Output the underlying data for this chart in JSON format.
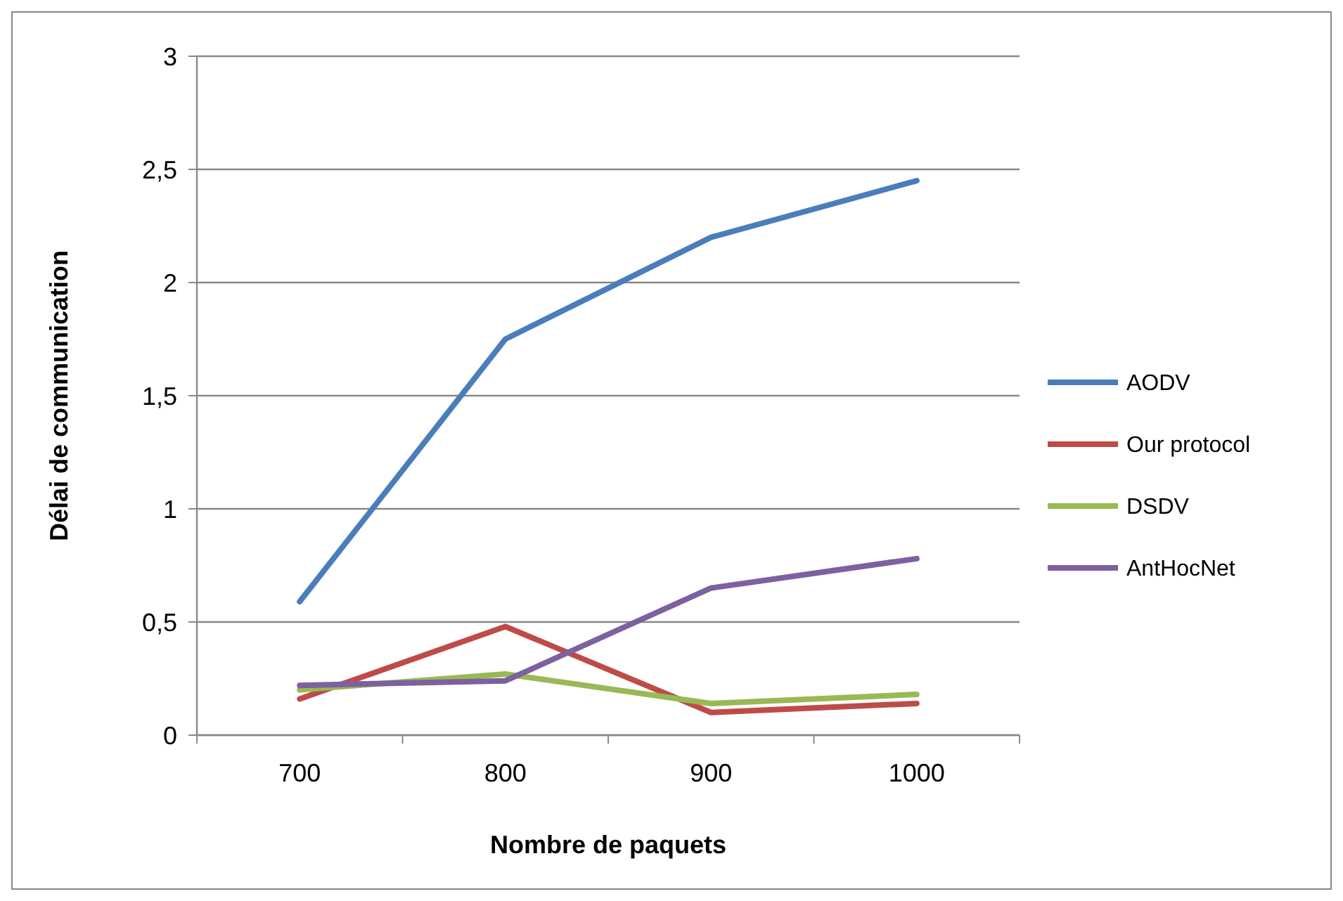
{
  "chart_data": {
    "type": "line",
    "xlabel": "Nombre de paquets",
    "ylabel": "Délai de communication",
    "categories": [
      "700",
      "800",
      "900",
      "1000"
    ],
    "series": [
      {
        "name": "AODV",
        "color": "#4a7ebb",
        "values": [
          0.59,
          1.75,
          2.2,
          2.45
        ]
      },
      {
        "name": "Our protocol",
        "color": "#be4b48",
        "values": [
          0.16,
          0.48,
          0.1,
          0.14
        ]
      },
      {
        "name": "DSDV",
        "color": "#98b954",
        "values": [
          0.2,
          0.27,
          0.14,
          0.18
        ]
      },
      {
        "name": "AntHocNet",
        "color": "#7d60a0",
        "values": [
          0.22,
          0.24,
          0.65,
          0.78
        ]
      }
    ],
    "ylim": [
      0,
      3
    ],
    "yticks": [
      0,
      {
        "value": 0.5,
        "label": "0,5"
      },
      1,
      {
        "value": 1.5,
        "label": "1,5"
      },
      2,
      {
        "value": 2.5,
        "label": "2,5"
      },
      3
    ],
    "grid": "y",
    "legend": "right",
    "marker": "none",
    "line_style": "solid"
  }
}
